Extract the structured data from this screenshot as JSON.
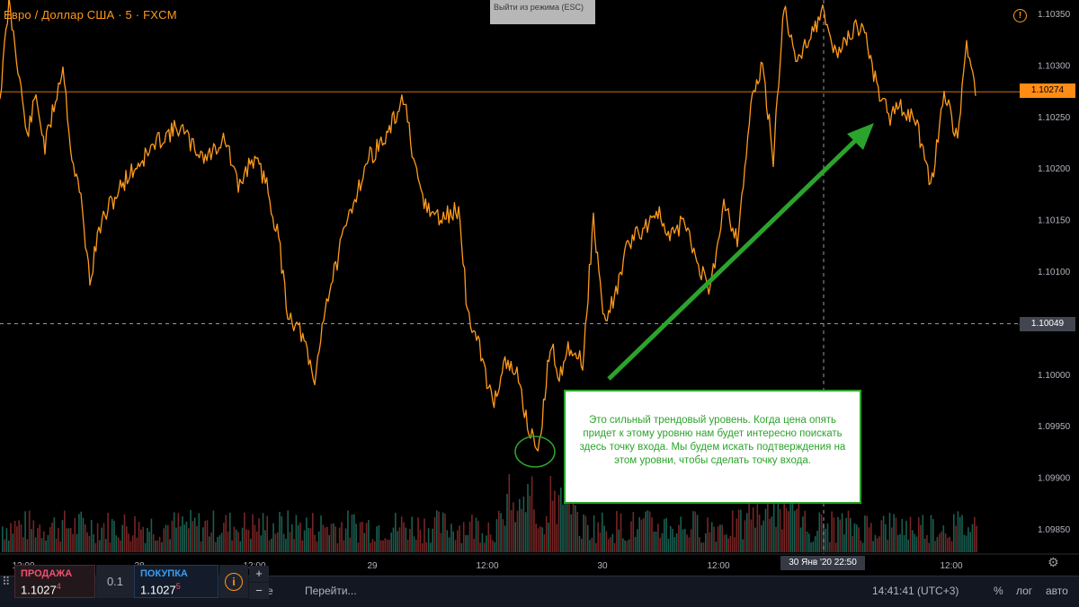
{
  "window": {
    "title": "Евро / Доллар США · 5 · FXCM",
    "exit_tip": "Выйти из режима (ESC)",
    "warning_icon": "!"
  },
  "chart_data": {
    "type": "line",
    "title": "Евро / Доллар США · 5 · FXCM",
    "y_ticks": [
      "1.10350",
      "1.10300",
      "1.10250",
      "1.10200",
      "1.10150",
      "1.10100",
      "1.10050",
      "1.10000",
      "1.09950",
      "1.09900",
      "1.09850"
    ],
    "ylim": [
      1.0982,
      1.1036
    ],
    "x_ticks": [
      "12:00",
      "28",
      "12:00",
      "29",
      "12:00",
      "30",
      "12:00",
      "12:00"
    ],
    "current_price": "1.10274",
    "crosshair_price": "1.10049",
    "crosshair_time": "30 Янв '20    22:50",
    "series": [
      {
        "color": "#ff9a1c",
        "points": [
          [
            0,
            1.1027
          ],
          [
            10,
            1.1036
          ],
          [
            20,
            1.103
          ],
          [
            30,
            1.1023
          ],
          [
            40,
            1.1027
          ],
          [
            50,
            1.1022
          ],
          [
            60,
            1.1026
          ],
          [
            70,
            1.103
          ],
          [
            80,
            1.1021
          ],
          [
            90,
            1.1017
          ],
          [
            100,
            1.1009
          ],
          [
            110,
            1.1014
          ],
          [
            120,
            1.1016
          ],
          [
            140,
            1.1019
          ],
          [
            160,
            1.1021
          ],
          [
            180,
            1.1023
          ],
          [
            200,
            1.1024
          ],
          [
            215,
            1.1022
          ],
          [
            230,
            1.1021
          ],
          [
            250,
            1.1023
          ],
          [
            265,
            1.1018
          ],
          [
            280,
            1.1021
          ],
          [
            295,
            1.1019
          ],
          [
            310,
            1.1013
          ],
          [
            320,
            1.1006
          ],
          [
            335,
            1.1004
          ],
          [
            350,
            1.0999
          ],
          [
            360,
            1.1006
          ],
          [
            375,
            1.1011
          ],
          [
            390,
            1.1016
          ],
          [
            410,
            1.1021
          ],
          [
            430,
            1.1023
          ],
          [
            450,
            1.1027
          ],
          [
            460,
            1.102
          ],
          [
            475,
            1.1016
          ],
          [
            490,
            1.1015
          ],
          [
            510,
            1.1016
          ],
          [
            520,
            1.1006
          ],
          [
            535,
            1.1002
          ],
          [
            548,
            1.0997
          ],
          [
            560,
            1.1001
          ],
          [
            575,
            1.1
          ],
          [
            590,
            1.0994
          ],
          [
            600,
            1.0993
          ],
          [
            612,
            1.1003
          ],
          [
            622,
            1.1
          ],
          [
            635,
            1.1003
          ],
          [
            648,
            1.1001
          ],
          [
            660,
            1.1015
          ],
          [
            672,
            1.1005
          ],
          [
            685,
            1.1008
          ],
          [
            700,
            1.1013
          ],
          [
            715,
            1.1014
          ],
          [
            730,
            1.1016
          ],
          [
            745,
            1.1013
          ],
          [
            760,
            1.1015
          ],
          [
            775,
            1.1011
          ],
          [
            790,
            1.1008
          ],
          [
            805,
            1.1017
          ],
          [
            820,
            1.1013
          ],
          [
            835,
            1.1026
          ],
          [
            848,
            1.103
          ],
          [
            860,
            1.1021
          ],
          [
            872,
            1.1036
          ],
          [
            885,
            1.103
          ],
          [
            900,
            1.1033
          ],
          [
            915,
            1.1035
          ],
          [
            930,
            1.1031
          ],
          [
            945,
            1.1033
          ],
          [
            960,
            1.1034
          ],
          [
            975,
            1.1028
          ],
          [
            990,
            1.1025
          ],
          [
            1005,
            1.1026
          ],
          [
            1020,
            1.1024
          ],
          [
            1035,
            1.1018
          ],
          [
            1050,
            1.1027
          ],
          [
            1065,
            1.1023
          ],
          [
            1075,
            1.1032
          ],
          [
            1085,
            1.1027
          ]
        ]
      }
    ]
  },
  "annotation": {
    "text": "Это сильный трендовый уровень. Когда цена опять придет к этому уровню нам будет интересно поискать здесь точку входа. Мы будем искать подтверждения на этом уровни, чтобы сделать точку входа."
  },
  "trade": {
    "sell_label": "ПРОДАЖА",
    "sell_price": "1.1027",
    "sell_pip": "4",
    "qty": "0.1",
    "buy_label": "ПОКУПКА",
    "buy_price": "1.1027",
    "buy_pip": "5",
    "info_icon": "i",
    "plus": "+",
    "minus": "−"
  },
  "bottom_bar": {
    "left_fragment": "се",
    "goto": "Перейти...",
    "clock": "14:41:41 (UTC+3)",
    "percent": "%",
    "log": "лог",
    "auto": "авто"
  },
  "colors": {
    "price": "#ff9a1c",
    "annotation": "#2ca32c",
    "vol_up": "#1f6e5e",
    "vol_down": "#8b2b2b"
  }
}
